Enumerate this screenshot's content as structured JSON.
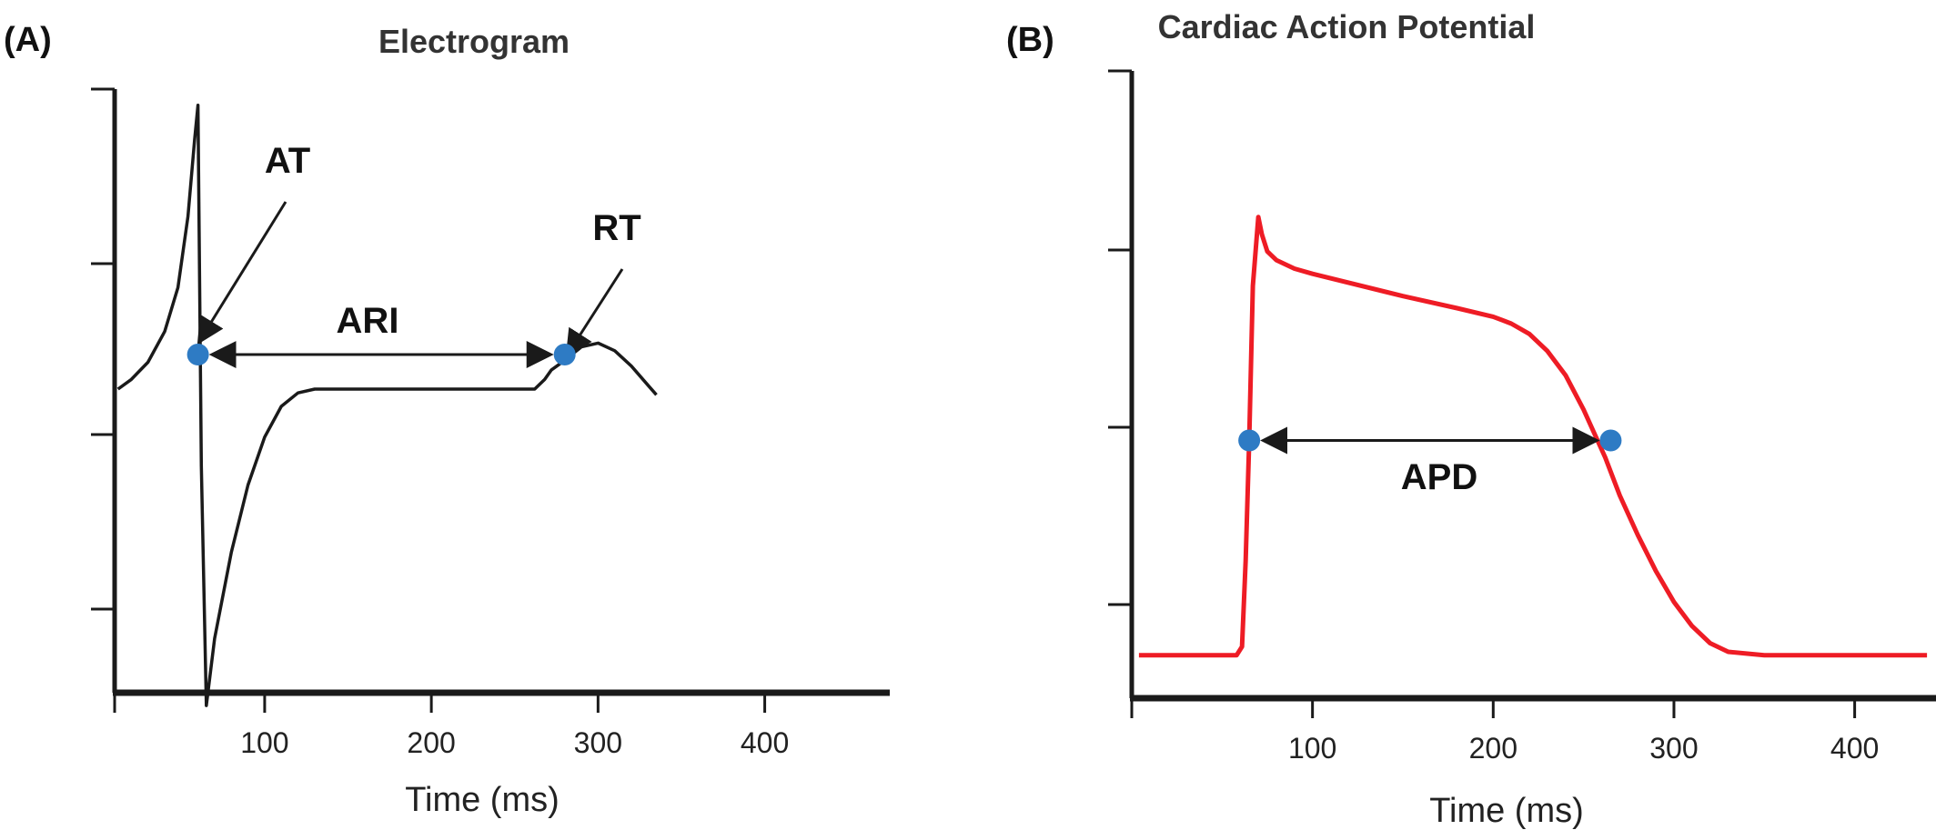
{
  "colors": {
    "ink": "#1a1a1a",
    "ap": "#ee1c25",
    "marker": "#2e7bc4"
  },
  "chart_data": [
    {
      "type": "line",
      "panel_label": "(A)",
      "title": "Electrogram",
      "xlabel": "Time (ms)",
      "ylabel": "",
      "xlim": [
        10,
        475
      ],
      "ylim": [
        -1.8,
        1.8
      ],
      "x_ticks": [
        100,
        200,
        300,
        400
      ],
      "y_tick_count": 4,
      "grid": false,
      "series": [
        {
          "x": [
            12,
            20,
            30,
            40,
            48,
            54,
            58,
            60,
            62,
            65,
            70,
            80,
            90,
            100,
            110,
            120,
            130,
            150,
            200,
            250,
            262,
            268,
            272,
            280,
            290,
            300,
            310,
            320,
            330,
            335
          ],
          "y": [
            0.0,
            0.05,
            0.14,
            0.3,
            0.53,
            0.9,
            1.3,
            1.48,
            -0.4,
            -1.65,
            -1.3,
            -0.85,
            -0.5,
            -0.25,
            -0.09,
            -0.02,
            0.0,
            0.0,
            0.0,
            0.0,
            0.0,
            0.05,
            0.1,
            0.15,
            0.22,
            0.24,
            0.2,
            0.12,
            0.02,
            -0.03
          ]
        }
      ],
      "markers": [
        {
          "label": "AT",
          "x": 60,
          "y": 0.18
        },
        {
          "label": "RT",
          "x": 280,
          "y": 0.18
        }
      ],
      "interval": {
        "label": "ARI",
        "from": 60,
        "to": 280
      }
    },
    {
      "type": "line",
      "panel_label": "(B)",
      "title": "Cardiac Action Potential",
      "xlabel": "Time (ms)",
      "ylabel": "",
      "xlim": [
        0,
        445
      ],
      "ylim": [
        0,
        3.5
      ],
      "x_ticks": [
        100,
        200,
        300,
        400
      ],
      "y_tick_count": 4,
      "grid": false,
      "series": [
        {
          "x": [
            4,
            50,
            58,
            61,
            63,
            65,
            67,
            70,
            72,
            75,
            80,
            90,
            100,
            150,
            180,
            200,
            210,
            220,
            230,
            240,
            250,
            262,
            270,
            280,
            290,
            300,
            310,
            320,
            330,
            340,
            350,
            360,
            380,
            400,
            440
          ],
          "y": [
            0.25,
            0.25,
            0.25,
            0.3,
            0.8,
            1.5,
            2.4,
            2.8,
            2.7,
            2.6,
            2.55,
            2.5,
            2.47,
            2.34,
            2.27,
            2.22,
            2.18,
            2.12,
            2.02,
            1.88,
            1.68,
            1.4,
            1.18,
            0.95,
            0.74,
            0.56,
            0.42,
            0.32,
            0.27,
            0.26,
            0.25,
            0.25,
            0.25,
            0.25,
            0.25
          ]
        }
      ],
      "markers": [
        {
          "label": "",
          "x": 65,
          "y": 1.5
        },
        {
          "label": "",
          "x": 265,
          "y": 1.5
        }
      ],
      "interval": {
        "label": "APD",
        "from": 65,
        "to": 265
      }
    }
  ]
}
